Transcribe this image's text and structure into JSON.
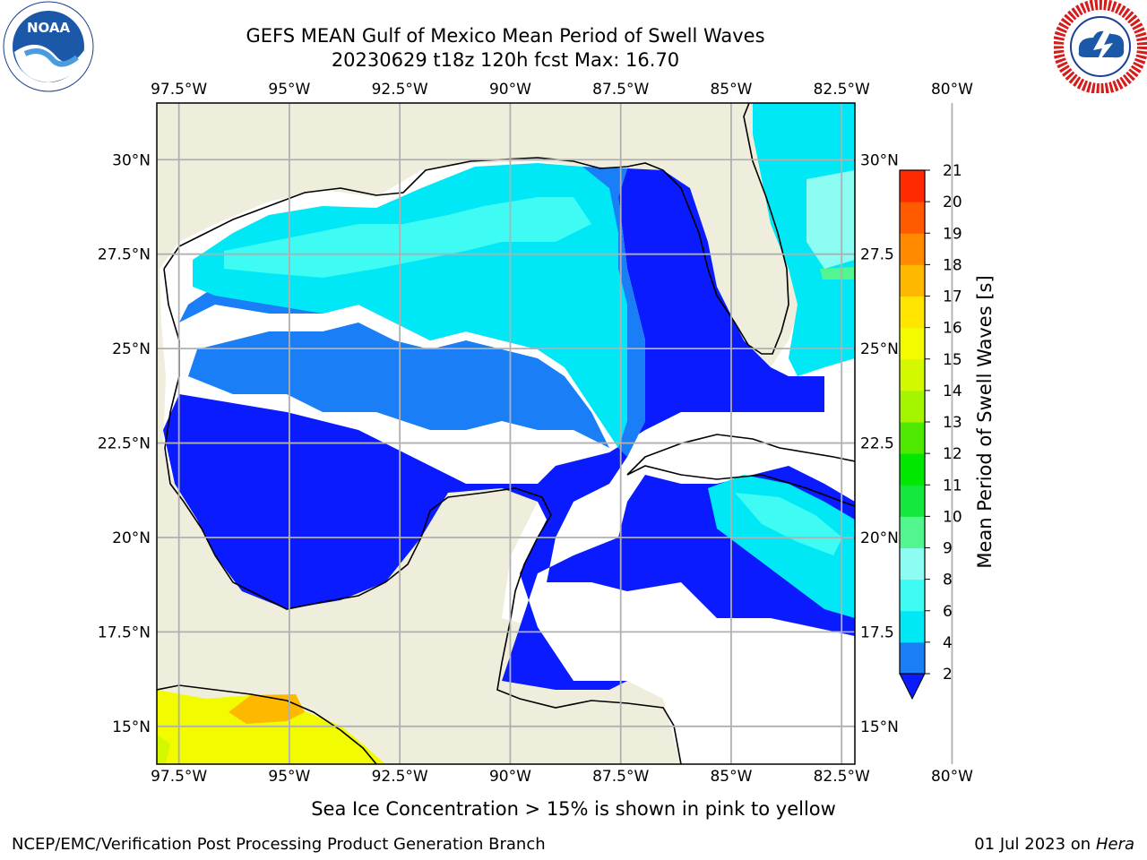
{
  "title": {
    "line1": "GEFS MEAN Gulf of Mexico Mean Period of Swell Waves",
    "line2": "20230629 t18z 120h fcst   Max: 16.70"
  },
  "map": {
    "lon_range": [
      -98.0,
      -82.2
    ],
    "lat_range": [
      14.0,
      31.5
    ],
    "lon_ticks": [
      -97.5,
      -95.0,
      -92.5,
      -90.0,
      -87.5,
      -85.0,
      -82.5,
      -80.0
    ],
    "lon_labels": [
      "97.5°W",
      "95°W",
      "92.5°W",
      "90°W",
      "87.5°W",
      "85°W",
      "82.5°W",
      "80°W"
    ],
    "lat_ticks": [
      30.0,
      27.5,
      25.0,
      22.5,
      20.0,
      17.5,
      15.0
    ],
    "lat_labels_left": [
      "30°N",
      "27.5°N",
      "25°N",
      "22.5°N",
      "20°N",
      "17.5°N",
      "15°N"
    ],
    "lat_labels_right": [
      "30°N",
      "27.5",
      "25°N",
      "22.5",
      "20°N",
      "17.5",
      "15°N"
    ],
    "land_color": "#efeedd",
    "grid_color": "#b0b0b0"
  },
  "colorbar": {
    "label": "Mean Period of Swell Waves [s]",
    "levels": [
      2,
      4,
      6,
      8,
      9,
      10,
      11,
      12,
      13,
      14,
      15,
      16,
      17,
      18,
      19,
      20,
      21
    ],
    "tick_labels": [
      "2",
      "4",
      "6",
      "8",
      "9",
      "10",
      "11",
      "12",
      "13",
      "14",
      "15",
      "16",
      "17",
      "18",
      "19",
      "20",
      "21"
    ],
    "colors": [
      "#1a7ef7",
      "#00e8f5",
      "#3efbf4",
      "#8dfcf2",
      "#52f58e",
      "#14e83c",
      "#00e800",
      "#4ee800",
      "#a5f500",
      "#d4f800",
      "#f2fb00",
      "#ffe500",
      "#ffb800",
      "#ff8a00",
      "#ff5a00",
      "#ff2a00"
    ],
    "extend_color": "#0a1bff"
  },
  "footer": {
    "ice_note": "Sea Ice Concentration > 15% is shown in pink to yellow",
    "credit": "NCEP/EMC/Verification Post Processing Product Generation Branch",
    "date": "01 Jul 2023 on ",
    "machine": "Hera"
  }
}
